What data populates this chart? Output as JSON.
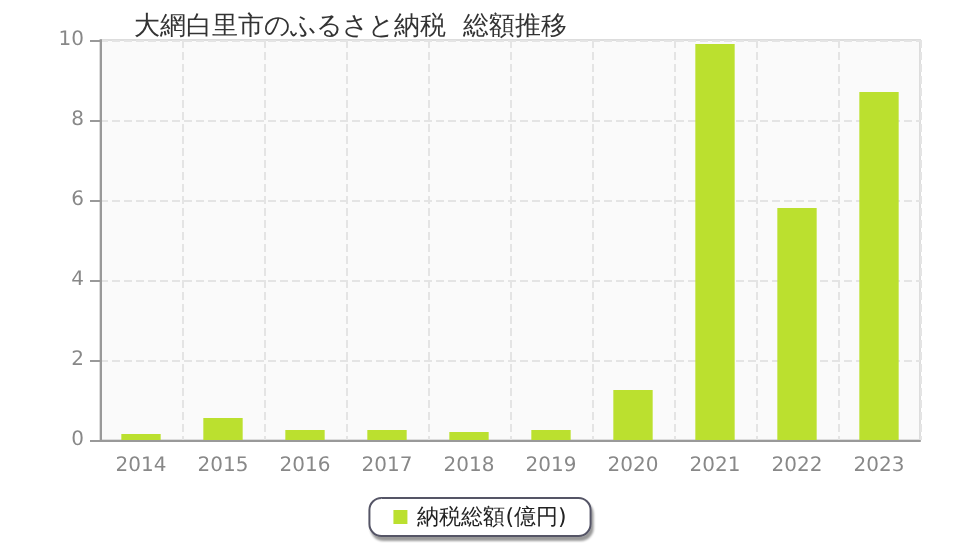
{
  "chart_data": {
    "type": "bar",
    "title": "大網白里市のふるさと納税  総額推移",
    "categories": [
      "2014",
      "2015",
      "2016",
      "2017",
      "2018",
      "2019",
      "2020",
      "2021",
      "2022",
      "2023"
    ],
    "series": [
      {
        "name": "納税総額(億円)",
        "color": "#bbe02f",
        "values": [
          0.15,
          0.55,
          0.25,
          0.25,
          0.2,
          0.25,
          1.25,
          9.9,
          5.8,
          8.7
        ]
      }
    ],
    "ylim": [
      0,
      10
    ],
    "yticks": [
      0,
      2,
      4,
      6,
      8,
      10
    ],
    "grid": true,
    "legend": "bottom"
  }
}
